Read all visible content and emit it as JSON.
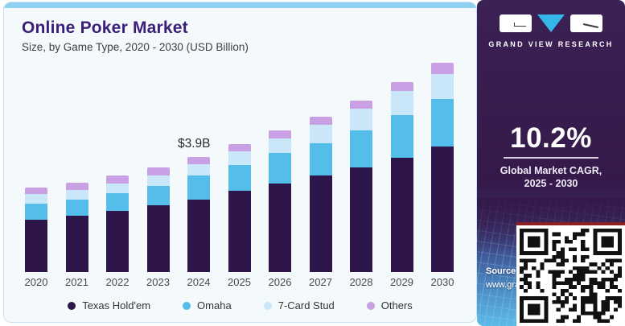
{
  "header": {
    "title": "Online Poker Market",
    "subtitle": "Size, by Game Type, 2020 - 2030 (USD Billion)"
  },
  "chart_data": {
    "type": "bar",
    "stacked": true,
    "unit": "USD Billion",
    "title": "Online Poker Market",
    "subtitle": "Size, by Game Type, 2020 - 2030 (USD Billion)",
    "categories": [
      "2020",
      "2021",
      "2022",
      "2023",
      "2024",
      "2025",
      "2026",
      "2027",
      "2028",
      "2029",
      "2030"
    ],
    "series": [
      {
        "name": "Texas Hold'em",
        "color": "#2e164a",
        "values": [
          1.79,
          1.91,
          2.09,
          2.26,
          2.47,
          2.75,
          3.02,
          3.29,
          3.55,
          3.88,
          4.27
        ]
      },
      {
        "name": "Omaha",
        "color": "#55bde9",
        "values": [
          0.53,
          0.55,
          0.59,
          0.66,
          0.8,
          0.89,
          1.03,
          1.09,
          1.27,
          1.46,
          1.61
        ]
      },
      {
        "name": "7-Card Stud",
        "color": "#c9e7f8",
        "values": [
          0.32,
          0.33,
          0.34,
          0.37,
          0.38,
          0.47,
          0.5,
          0.62,
          0.73,
          0.8,
          0.85
        ]
      },
      {
        "name": "Others",
        "color": "#c9a0e4",
        "values": [
          0.23,
          0.24,
          0.25,
          0.27,
          0.25,
          0.24,
          0.25,
          0.27,
          0.28,
          0.3,
          0.38
        ]
      }
    ],
    "annotation": {
      "year": "2024",
      "text": "$3.9B"
    },
    "ylim": [
      0,
      7.4
    ],
    "grid": false,
    "legend_position": "bottom"
  },
  "panel": {
    "brand": "GRAND VIEW RESEARCH",
    "cagr_value": "10.2%",
    "cagr_label_line1": "Global Market CAGR,",
    "cagr_label_line2": "2025 - 2030",
    "source_label": "Source:",
    "source_url": "www.gra"
  },
  "colors": {
    "card_background": "#f4f9fc",
    "card_top_strip": "#8ed1f0",
    "title_text": "#3b1e78",
    "panel_purple": "#361c4d",
    "panel_blue_bottom": "#5cbbe8",
    "qr_top_border": "#8c1f24"
  }
}
